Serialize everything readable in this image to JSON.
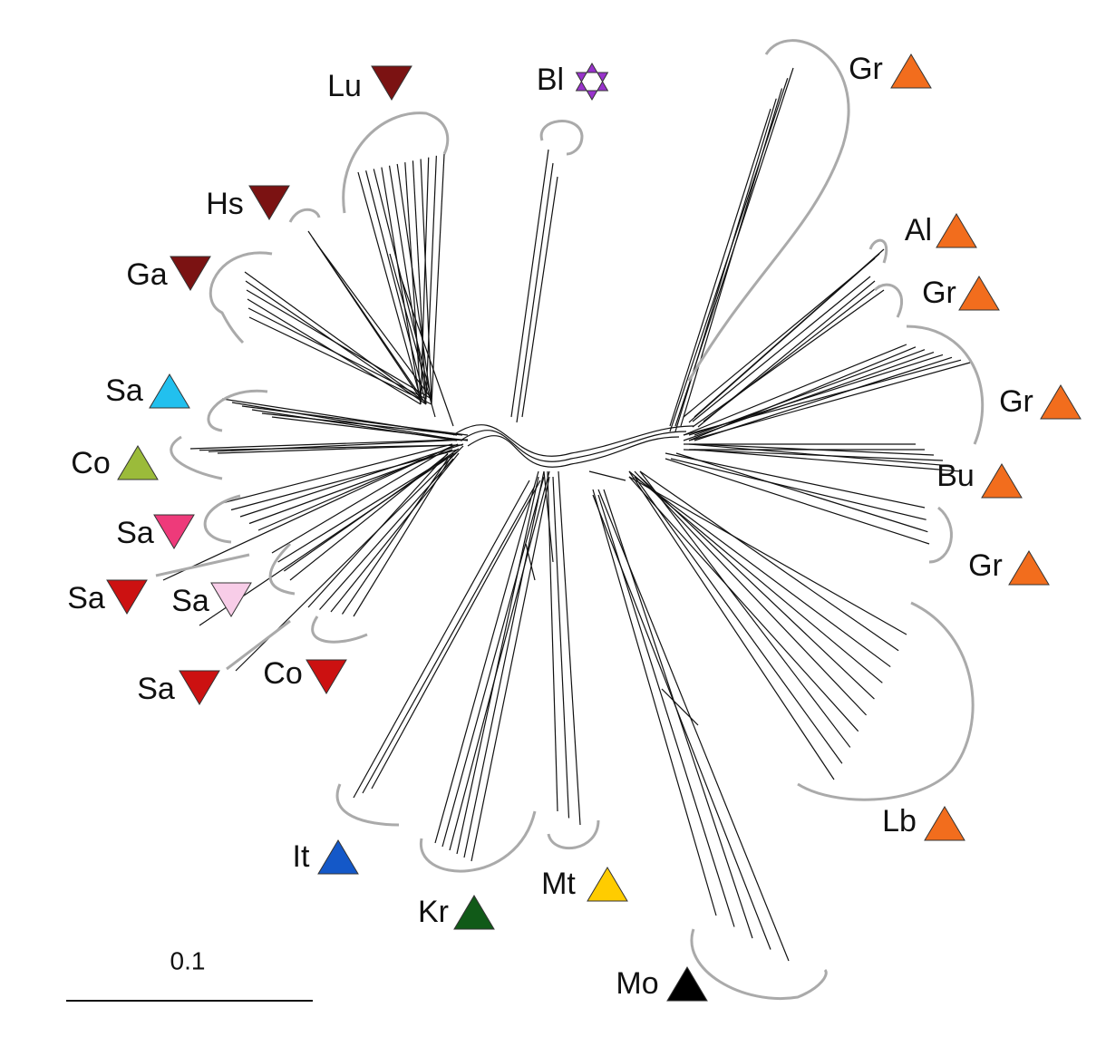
{
  "nodes": [
    {
      "label": "Lu",
      "symbol": "down",
      "color": "#7b1212"
    },
    {
      "label": "Bl",
      "symbol": "star",
      "color": "#9933cc"
    },
    {
      "label": "Gr",
      "symbol": "up",
      "color": "#f26d1d"
    },
    {
      "label": "Hs",
      "symbol": "down",
      "color": "#7b1212"
    },
    {
      "label": "Al",
      "symbol": "up",
      "color": "#f26d1d"
    },
    {
      "label": "Ga",
      "symbol": "down",
      "color": "#7b1212"
    },
    {
      "label": "Gr",
      "symbol": "up",
      "color": "#f26d1d"
    },
    {
      "label": "Sa",
      "symbol": "up",
      "color": "#22c0ee"
    },
    {
      "label": "Gr",
      "symbol": "up",
      "color": "#f26d1d"
    },
    {
      "label": "Co",
      "symbol": "up",
      "color": "#9bbb3a"
    },
    {
      "label": "Bu",
      "symbol": "up",
      "color": "#f26d1d"
    },
    {
      "label": "Sa",
      "symbol": "down",
      "color": "#ee3a7a"
    },
    {
      "label": "Gr",
      "symbol": "up",
      "color": "#f26d1d"
    },
    {
      "label": "Sa",
      "symbol": "down",
      "color": "#cc1111"
    },
    {
      "label": "Sa",
      "symbol": "down",
      "color": "#f8cde8"
    },
    {
      "label": "Co",
      "symbol": "down",
      "color": "#cc1111"
    },
    {
      "label": "Sa",
      "symbol": "down",
      "color": "#cc1111"
    },
    {
      "label": "Lb",
      "symbol": "up",
      "color": "#f26d1d"
    },
    {
      "label": "It",
      "symbol": "up",
      "color": "#1458c8"
    },
    {
      "label": "Mt",
      "symbol": "up",
      "color": "#ffcc00"
    },
    {
      "label": "Kr",
      "symbol": "up",
      "color": "#115a18"
    },
    {
      "label": "Mo",
      "symbol": "up",
      "color": "#000000"
    }
  ],
  "scale_bar": {
    "label": "0.1"
  }
}
